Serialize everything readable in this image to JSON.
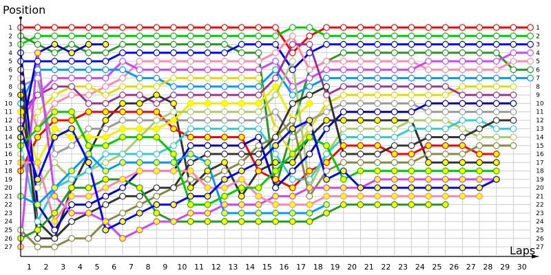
{
  "chart_data": {
    "type": "line",
    "ylabel": "Position",
    "xlabel": "Laps",
    "x_ticks": [
      1,
      2,
      3,
      4,
      5,
      6,
      7,
      8,
      9,
      10,
      11,
      12,
      13,
      14,
      15,
      16,
      17,
      18,
      19,
      20,
      21,
      22,
      23,
      24,
      25,
      26,
      27,
      28,
      29,
      30
    ],
    "y_ticks": [
      1,
      2,
      3,
      4,
      5,
      6,
      7,
      8,
      9,
      10,
      11,
      12,
      13,
      14,
      15,
      16,
      17,
      18,
      19,
      20,
      21,
      22,
      23,
      24,
      25,
      26,
      27
    ],
    "xlim": [
      0,
      30
    ],
    "ylim": [
      1,
      27
    ],
    "y_inverted": true,
    "grid": true,
    "lapped_marker_fill": "#ffff00",
    "series": [
      {
        "color": "#ff0000",
        "lapped": false,
        "positions": [
          1,
          1,
          1,
          1,
          1,
          1,
          1,
          1,
          1,
          1,
          1,
          1,
          1,
          1,
          1,
          1,
          4,
          2,
          1,
          1,
          1,
          1,
          1,
          1,
          1,
          1,
          1,
          1,
          1,
          1,
          1
        ]
      },
      {
        "color": "#00cc00",
        "lapped": false,
        "positions": [
          3,
          2,
          2,
          2,
          2,
          2,
          2,
          2,
          2,
          2,
          2,
          2,
          2,
          2,
          2,
          2,
          1,
          1,
          2,
          2,
          2,
          2,
          2,
          2,
          2,
          2,
          2,
          2,
          2,
          2,
          2
        ]
      },
      {
        "color": "#229922",
        "lapped": false,
        "positions": [
          2,
          3,
          4,
          3,
          4,
          4,
          3,
          3,
          3,
          3,
          3,
          3,
          3,
          4,
          4,
          20,
          13,
          6,
          5,
          4,
          4,
          4,
          4,
          4,
          4,
          4,
          4,
          4,
          4,
          6,
          6
        ]
      },
      {
        "color": "#0000ff",
        "lapped": false,
        "positions": [
          5,
          5,
          5,
          5,
          5,
          5,
          4,
          4,
          4,
          4,
          4,
          4,
          4,
          3,
          3,
          3,
          6,
          4,
          3,
          3,
          3,
          3,
          3,
          3,
          3,
          3,
          3,
          3,
          3,
          3,
          3
        ]
      },
      {
        "color": "#ff88aa",
        "lapped": false,
        "positions": [
          7,
          13,
          10,
          9,
          9,
          8,
          7,
          5,
          5,
          5,
          5,
          5,
          5,
          5,
          5,
          4,
          2,
          6,
          5,
          5,
          5,
          5,
          5,
          5,
          6,
          6,
          6,
          6,
          6,
          5,
          5
        ]
      },
      {
        "color": "#cc44ff",
        "lapped": false,
        "positions": [
          12,
          9,
          7,
          7,
          7,
          7,
          5,
          6,
          6,
          6,
          6,
          6,
          6,
          6,
          6,
          5,
          8,
          7,
          6,
          6,
          6,
          6,
          6,
          6,
          5,
          5,
          5,
          5,
          5,
          4,
          4
        ]
      },
      {
        "color": "#0099ff",
        "lapped": false,
        "positions": [
          10,
          6,
          6,
          6,
          6,
          6,
          6,
          7,
          7,
          8,
          8,
          8,
          8,
          8,
          8,
          6,
          9,
          8,
          7,
          7,
          7,
          7,
          7,
          7,
          7,
          7,
          7,
          7,
          7,
          7,
          7
        ]
      },
      {
        "color": "#dddd00",
        "lapped": false,
        "positions": [
          14,
          11,
          9,
          8,
          8,
          9,
          8,
          8,
          8,
          7,
          7,
          7,
          7,
          7,
          7,
          13,
          16,
          13,
          10,
          9,
          9,
          9,
          9,
          9,
          9,
          9,
          8,
          8,
          8,
          8,
          null
        ]
      },
      {
        "color": "#993399",
        "lapped": false,
        "positions": [
          11,
          9,
          8,
          8,
          10,
          10,
          9,
          9,
          10,
          9,
          9,
          9,
          9,
          9,
          9,
          7,
          3,
          3,
          9,
          8,
          8,
          8,
          8,
          8,
          8,
          8,
          9,
          9,
          9,
          9,
          null
        ]
      },
      {
        "color": "#333333",
        "lapped": true,
        "positions": [
          9,
          24,
          26,
          20,
          16,
          12,
          10,
          10,
          9,
          10,
          20,
          18,
          17,
          21,
          18,
          17,
          17,
          14,
          12,
          12,
          12,
          12,
          12,
          12,
          17,
          17,
          17,
          17,
          17,
          null,
          null
        ]
      },
      {
        "color": "#ff0000",
        "lapped": true,
        "positions": [
          18,
          14,
          12,
          12,
          11,
          11,
          11,
          11,
          11,
          13,
          14,
          14,
          14,
          14,
          18,
          19,
          20,
          18,
          17,
          15,
          15,
          15,
          16,
          16,
          15,
          15,
          15,
          16,
          16,
          null,
          null
        ]
      },
      {
        "color": "#999999",
        "lapped": false,
        "positions": [
          8,
          7,
          16,
          15,
          13,
          13,
          12,
          12,
          12,
          12,
          12,
          12,
          12,
          12,
          12,
          11,
          14,
          12,
          11,
          10,
          10,
          10,
          10,
          10,
          11,
          11,
          11,
          11,
          11,
          11,
          null
        ]
      },
      {
        "color": "#eeee00",
        "lapped": true,
        "positions": [
          11,
          17,
          13,
          14,
          14,
          14,
          13,
          13,
          13,
          12,
          10,
          10,
          10,
          10,
          10,
          8,
          12,
          10,
          null,
          null,
          null,
          null,
          null,
          null,
          null,
          null,
          null,
          null,
          null,
          null,
          null
        ]
      },
      {
        "color": "#aacc66",
        "lapped": false,
        "positions": [
          16,
          20,
          17,
          19,
          18,
          17,
          16,
          14,
          12,
          11,
          11,
          11,
          11,
          11,
          11,
          9,
          5,
          20,
          16,
          13,
          13,
          13,
          13,
          12,
          12,
          12,
          13,
          14,
          14,
          14,
          null
        ]
      },
      {
        "color": "#33cccc",
        "lapped": false,
        "positions": [
          15,
          24,
          20,
          19,
          18,
          16,
          16,
          16,
          16,
          15,
          13,
          13,
          13,
          13,
          13,
          16,
          19,
          19,
          16,
          14,
          14,
          14,
          14,
          13,
          13,
          13,
          12,
          12,
          13,
          13,
          null
        ]
      },
      {
        "color": "#888844",
        "lapped": false,
        "positions": [
          25,
          27,
          27,
          26,
          26,
          24,
          23,
          22,
          21,
          20,
          19,
          19,
          18,
          17,
          15,
          14,
          12,
          21,
          18,
          17,
          17,
          17,
          17,
          17,
          16,
          16,
          16,
          15,
          15,
          15,
          null
        ]
      },
      {
        "color": "#0000bb",
        "lapped": false,
        "positions": [
          4,
          22,
          25,
          22,
          22,
          21,
          20,
          18,
          18,
          18,
          15,
          15,
          15,
          15,
          14,
          20,
          18,
          16,
          13,
          11,
          11,
          11,
          11,
          11,
          10,
          10,
          10,
          10,
          10,
          10,
          null
        ]
      },
      {
        "color": "#0000bb",
        "lapped": true,
        "positions": [
          14,
          4,
          3,
          4,
          3,
          3,
          null,
          null,
          null,
          null,
          null,
          null,
          null,
          null,
          null,
          null,
          null,
          null,
          null,
          null,
          null,
          null,
          null,
          null,
          null,
          null,
          null,
          null,
          null,
          null,
          null
        ]
      },
      {
        "color": "#333333",
        "lapped": false,
        "positions": [
          6,
          26,
          26,
          24,
          23,
          22,
          21,
          21,
          20,
          20,
          17,
          16,
          16,
          16,
          16,
          14,
          10,
          9,
          8,
          16,
          16,
          16,
          15,
          15,
          14,
          14,
          14,
          13,
          12,
          12,
          null
        ]
      },
      {
        "color": "#229922",
        "lapped": true,
        "positions": [
          26,
          25,
          23,
          20,
          20,
          19,
          19,
          20,
          23,
          24,
          24,
          24,
          24,
          24,
          24,
          24,
          24,
          24,
          23,
          22,
          22,
          22,
          22,
          22,
          22,
          22,
          null,
          null,
          null,
          null,
          null
        ]
      },
      {
        "color": "#cc44ff",
        "lapped": true,
        "positions": [
          27,
          4,
          21,
          23,
          23,
          24,
          26,
          25,
          24,
          24,
          23,
          23,
          22,
          22,
          22,
          21,
          21,
          20,
          20,
          20,
          20,
          19,
          19,
          19,
          19,
          19,
          19,
          19,
          19,
          null,
          null
        ]
      },
      {
        "color": "#ff88aa",
        "lapped": true,
        "positions": [
          17,
          17,
          24,
          21,
          21,
          20,
          19,
          18,
          18,
          18,
          18,
          20,
          20,
          19,
          21,
          22,
          22,
          22,
          21,
          21,
          21,
          21,
          21,
          21,
          21,
          21,
          21,
          21,
          null,
          null,
          null
        ]
      },
      {
        "color": "#0099ff",
        "lapped": true,
        "positions": [
          21,
          22,
          20,
          18,
          16,
          18,
          17,
          17,
          17,
          17,
          16,
          17,
          23,
          23,
          23,
          23,
          23,
          23,
          22,
          null,
          null,
          null,
          null,
          null,
          null,
          null,
          null,
          null,
          null,
          null,
          null
        ]
      },
      {
        "color": "#00cc00",
        "lapped": true,
        "positions": [
          15,
          13,
          11,
          11,
          15,
          15,
          14,
          14,
          14,
          16,
          22,
          22,
          21,
          20,
          20,
          18,
          16,
          14,
          15,
          19,
          18,
          18,
          18,
          18,
          18,
          18,
          18,
          18,
          18,
          null,
          null
        ]
      },
      {
        "color": "#0000ff",
        "lapped": true,
        "positions": [
          13,
          19,
          14,
          13,
          17,
          25,
          24,
          23,
          22,
          22,
          21,
          21,
          19,
          18,
          17,
          15,
          13,
          12,
          19,
          18,
          20,
          20,
          20,
          20,
          20,
          20,
          20,
          20,
          19,
          null,
          null
        ]
      }
    ]
  }
}
